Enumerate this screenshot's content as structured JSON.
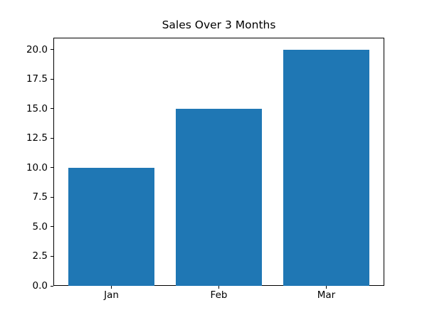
{
  "chart_data": {
    "type": "bar",
    "title": "Sales Over 3 Months",
    "categories": [
      "Jan",
      "Feb",
      "Mar"
    ],
    "values": [
      10,
      15,
      20
    ],
    "bar_color": "#1f77b4",
    "axis_color": "#000000",
    "text_color": "#000000",
    "background_color": "#ffffff",
    "xlabel": "",
    "ylabel": "",
    "ylim": [
      0,
      21
    ],
    "yticks": [
      0.0,
      2.5,
      5.0,
      7.5,
      10.0,
      12.5,
      15.0,
      17.5,
      20.0
    ],
    "ytick_format_decimals": 1,
    "grid": false,
    "legend": null
  }
}
